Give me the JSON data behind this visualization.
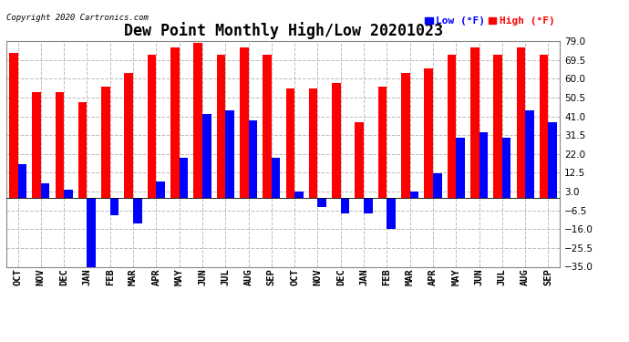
{
  "title": "Dew Point Monthly High/Low 20201023",
  "copyright": "Copyright 2020 Cartronics.com",
  "months": [
    "OCT",
    "NOV",
    "DEC",
    "JAN",
    "FEB",
    "MAR",
    "APR",
    "MAY",
    "JUN",
    "JUL",
    "AUG",
    "SEP",
    "OCT",
    "NOV",
    "DEC",
    "JAN",
    "FEB",
    "MAR",
    "APR",
    "MAY",
    "JUN",
    "JUL",
    "AUG",
    "SEP"
  ],
  "high": [
    73,
    53,
    53,
    48,
    56,
    63,
    72,
    76,
    78,
    72,
    76,
    72,
    55,
    55,
    58,
    38,
    56,
    63,
    65,
    72,
    76,
    72,
    76,
    72
  ],
  "low": [
    17,
    7,
    4,
    -35,
    -9,
    -13,
    8,
    20,
    42,
    44,
    39,
    20,
    3,
    -5,
    -8,
    -8,
    -16,
    3,
    12,
    30,
    33,
    30,
    44,
    38
  ],
  "ylim": [
    -35.0,
    79.0
  ],
  "yticks": [
    -35.0,
    -25.5,
    -16.0,
    -6.5,
    3.0,
    12.5,
    22.0,
    31.5,
    41.0,
    50.5,
    60.0,
    69.5,
    79.0
  ],
  "high_color": "#ff0000",
  "low_color": "#0000ff",
  "bar_width": 0.38,
  "bg_color": "#ffffff",
  "grid_color": "#bbbbbb",
  "title_fontsize": 12,
  "tick_fontsize": 7.5
}
